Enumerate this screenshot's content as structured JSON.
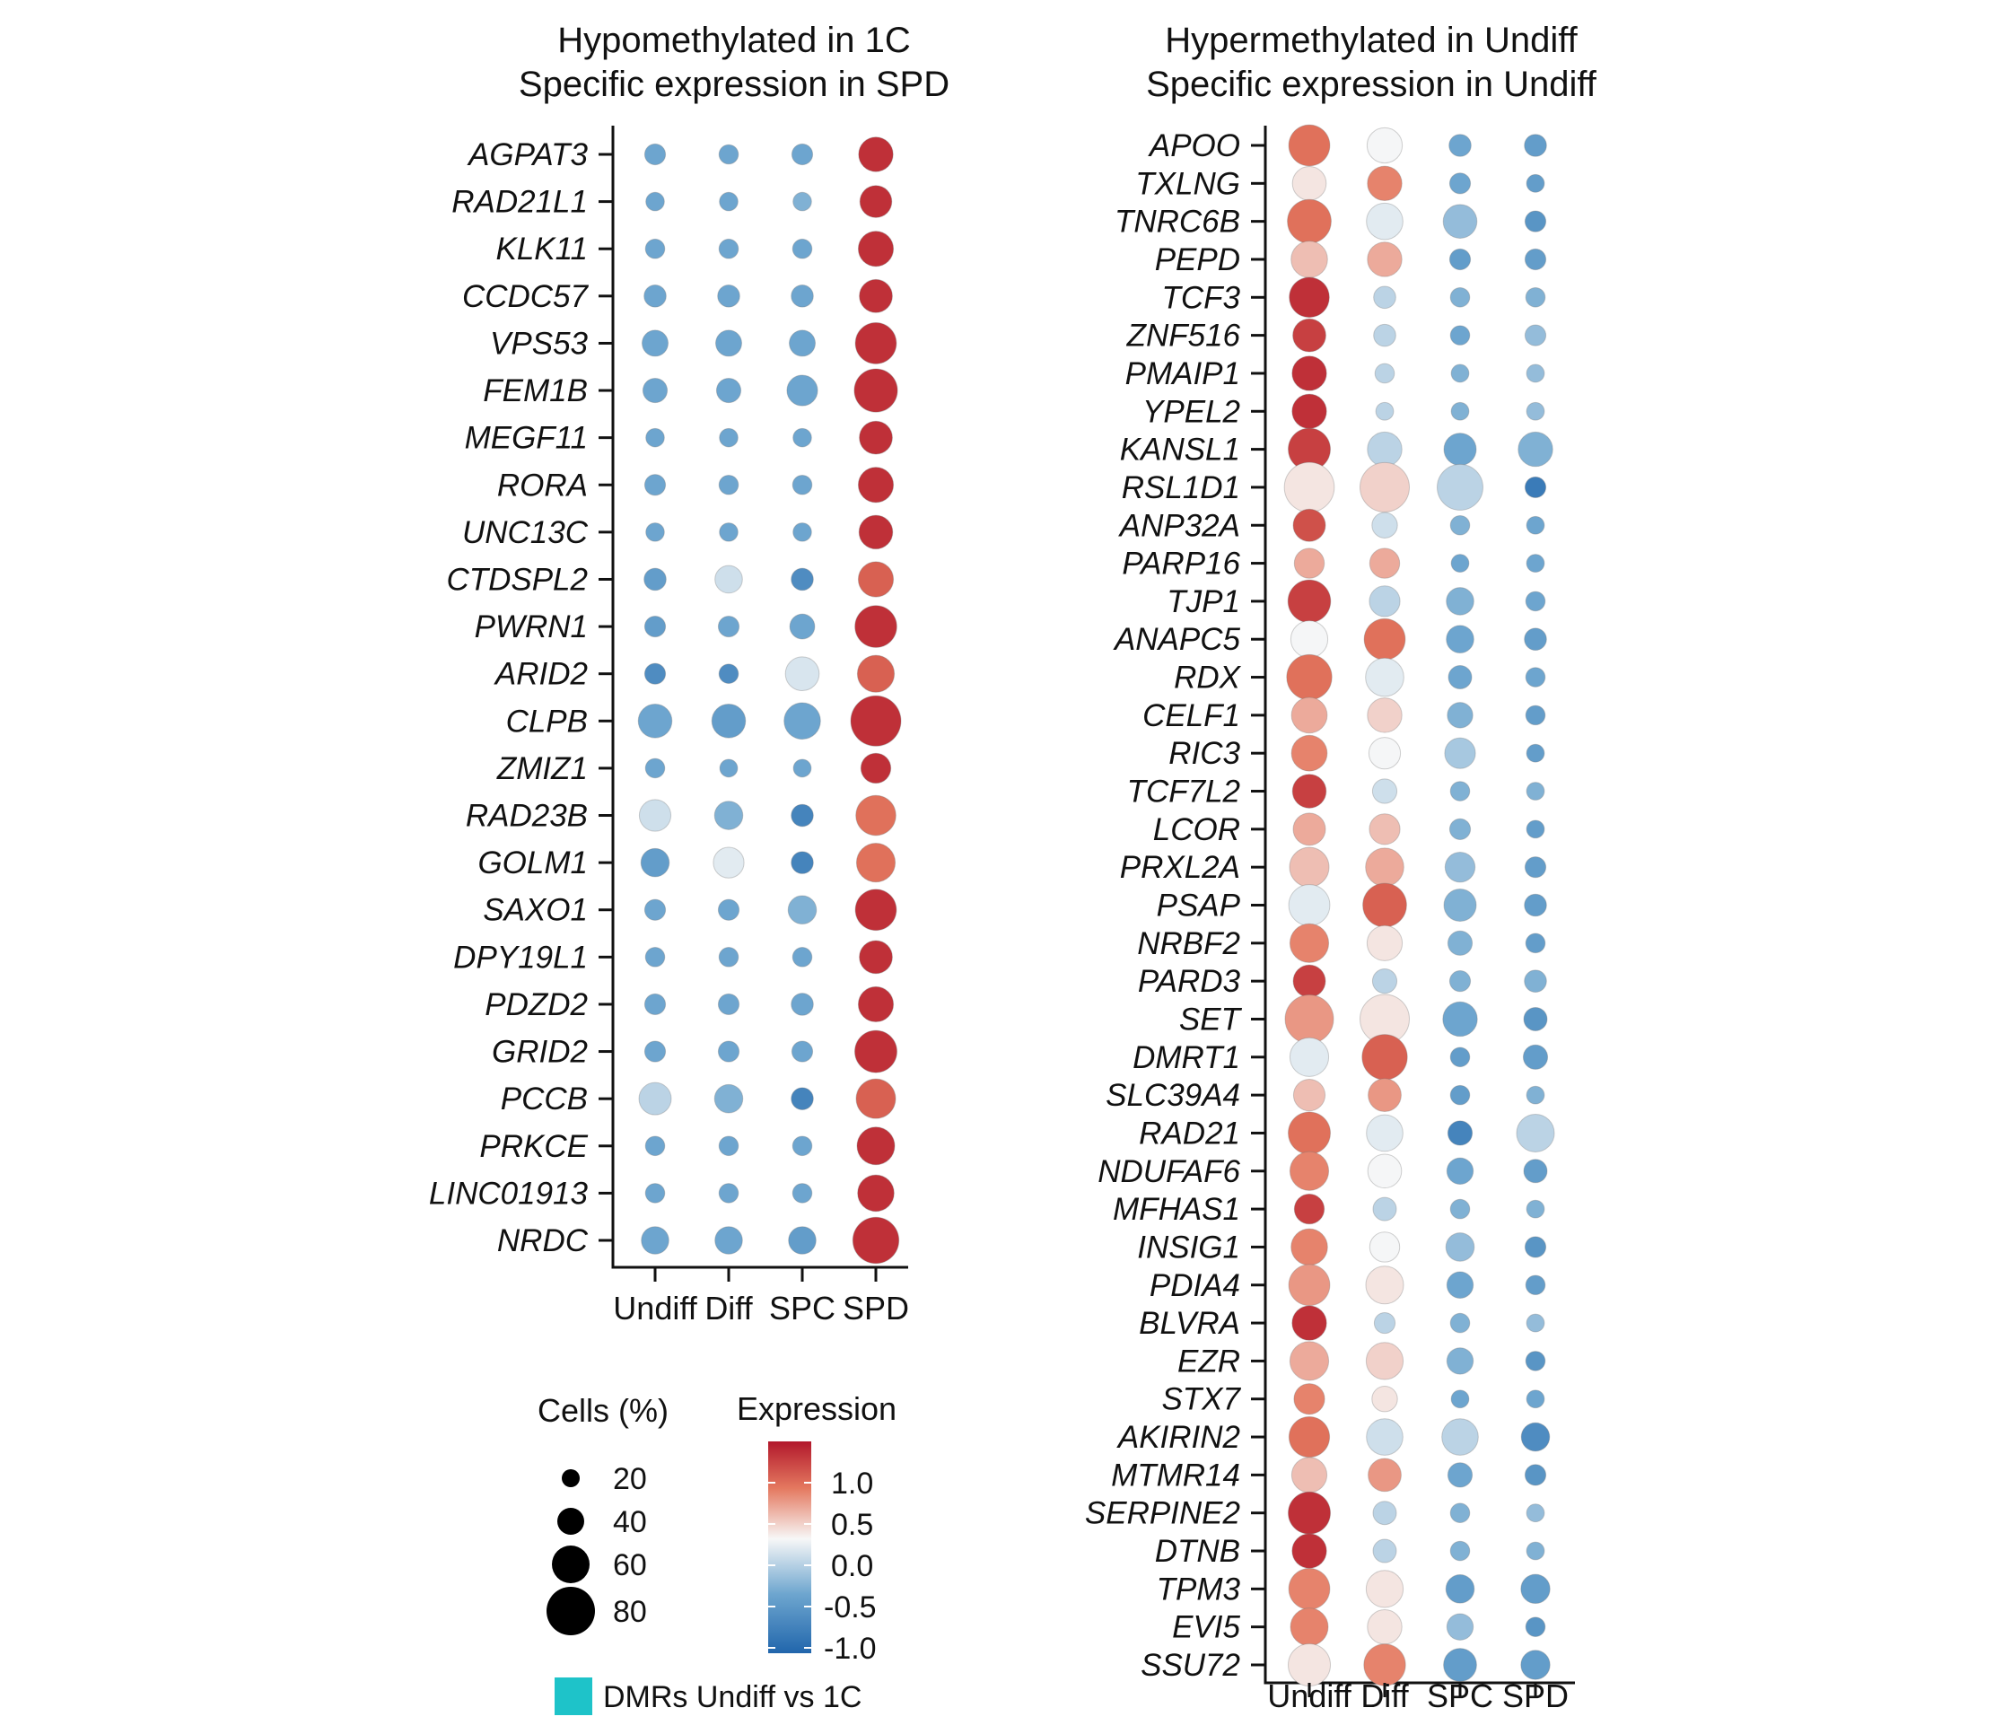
{
  "chart_data": [
    {
      "type": "dotplot",
      "title": [
        "Hypomethylated in 1C",
        "Specific expression in SPD"
      ],
      "categories": [
        "Undiff",
        "Diff",
        "SPC",
        "SPD"
      ],
      "genes": [
        "AGPAT3",
        "RAD21L1",
        "KLK11",
        "CCDC57",
        "VPS53",
        "FEM1B",
        "MEGF11",
        "RORA",
        "UNC13C",
        "CTDSPL2",
        "PWRN1",
        "ARID2",
        "CLPB",
        "ZMIZ1",
        "RAD23B",
        "GOLM1",
        "SAXO1",
        "DPY19L1",
        "PDZD2",
        "GRID2",
        "PCCB",
        "PRKCE",
        "LINC01913",
        "NRDC"
      ],
      "expression": [
        [
          -0.5,
          -0.5,
          -0.5,
          1.3
        ],
        [
          -0.5,
          -0.5,
          -0.4,
          1.3
        ],
        [
          -0.5,
          -0.5,
          -0.5,
          1.3
        ],
        [
          -0.5,
          -0.5,
          -0.5,
          1.3
        ],
        [
          -0.5,
          -0.5,
          -0.5,
          1.3
        ],
        [
          -0.5,
          -0.5,
          -0.5,
          1.3
        ],
        [
          -0.5,
          -0.5,
          -0.5,
          1.3
        ],
        [
          -0.5,
          -0.5,
          -0.5,
          1.3
        ],
        [
          -0.5,
          -0.5,
          -0.5,
          1.3
        ],
        [
          -0.6,
          0.0,
          -0.8,
          1.0
        ],
        [
          -0.6,
          -0.5,
          -0.5,
          1.3
        ],
        [
          -0.8,
          -0.8,
          0.05,
          1.0
        ],
        [
          -0.5,
          -0.6,
          -0.5,
          1.3
        ],
        [
          -0.5,
          -0.5,
          -0.5,
          1.3
        ],
        [
          0.0,
          -0.4,
          -0.9,
          0.9
        ],
        [
          -0.6,
          0.1,
          -0.9,
          0.9
        ],
        [
          -0.5,
          -0.5,
          -0.4,
          1.3
        ],
        [
          -0.5,
          -0.5,
          -0.5,
          1.3
        ],
        [
          -0.5,
          -0.5,
          -0.5,
          1.3
        ],
        [
          -0.5,
          -0.5,
          -0.5,
          1.3
        ],
        [
          -0.1,
          -0.4,
          -0.9,
          1.0
        ],
        [
          -0.5,
          -0.5,
          -0.5,
          1.3
        ],
        [
          -0.5,
          -0.5,
          -0.5,
          1.3
        ],
        [
          -0.5,
          -0.5,
          -0.6,
          1.3
        ]
      ],
      "cells_pct": [
        [
          10,
          8,
          10,
          40
        ],
        [
          7,
          7,
          7,
          33
        ],
        [
          8,
          8,
          8,
          42
        ],
        [
          12,
          12,
          12,
          36
        ],
        [
          19,
          19,
          19,
          62
        ],
        [
          16,
          16,
          30,
          70
        ],
        [
          7,
          7,
          7,
          36
        ],
        [
          10,
          8,
          8,
          42
        ],
        [
          7,
          7,
          7,
          38
        ],
        [
          12,
          22,
          12,
          42
        ],
        [
          10,
          10,
          17,
          65
        ],
        [
          10,
          8,
          38,
          48
        ],
        [
          38,
          38,
          46,
          100
        ],
        [
          8,
          6,
          6,
          28
        ],
        [
          32,
          24,
          12,
          58
        ],
        [
          24,
          30,
          12,
          54
        ],
        [
          10,
          10,
          24,
          62
        ],
        [
          8,
          8,
          8,
          36
        ],
        [
          10,
          10,
          12,
          42
        ],
        [
          10,
          10,
          10,
          66
        ],
        [
          34,
          24,
          12,
          56
        ],
        [
          8,
          8,
          8,
          50
        ],
        [
          8,
          8,
          8,
          46
        ],
        [
          22,
          22,
          22,
          82
        ]
      ],
      "xlabel": "",
      "ylabel": ""
    },
    {
      "type": "dotplot",
      "title": [
        "Hypermethylated in Undiff",
        "Specific expression in Undiff"
      ],
      "categories": [
        "Undiff",
        "Diff",
        "SPC",
        "SPD"
      ],
      "genes": [
        "APOO",
        "TXLNG",
        "TNRC6B",
        "PEPD",
        "TCF3",
        "ZNF516",
        "PMAIP1",
        "YPEL2",
        "KANSL1",
        "RSL1D1",
        "ANP32A",
        "PARP16",
        "TJP1",
        "ANAPC5",
        "RDX",
        "CELF1",
        "RIC3",
        "TCF7L2",
        "LCOR",
        "PRXL2A",
        "PSAP",
        "NRBF2",
        "PARD3",
        "SET",
        "DMRT1",
        "SLC39A4",
        "RAD21",
        "NDUFAF6",
        "MFHAS1",
        "INSIG1",
        "PDIA4",
        "BLVRA",
        "EZR",
        "STX7",
        "AKIRIN2",
        "MTMR14",
        "SERPINE2",
        "DTNB",
        "TPM3",
        "EVI5",
        "SSU72"
      ],
      "expression": [
        [
          0.9,
          0.2,
          -0.5,
          -0.6
        ],
        [
          0.3,
          0.8,
          -0.5,
          -0.6
        ],
        [
          0.9,
          0.1,
          -0.3,
          -0.7
        ],
        [
          0.5,
          0.6,
          -0.6,
          -0.6
        ],
        [
          1.3,
          -0.1,
          -0.4,
          -0.4
        ],
        [
          1.2,
          -0.1,
          -0.5,
          -0.3
        ],
        [
          1.3,
          -0.1,
          -0.4,
          -0.3
        ],
        [
          1.3,
          -0.1,
          -0.4,
          -0.3
        ],
        [
          1.2,
          -0.1,
          -0.5,
          -0.4
        ],
        [
          0.3,
          0.4,
          -0.1,
          -1.0
        ],
        [
          1.1,
          0.0,
          -0.4,
          -0.5
        ],
        [
          0.6,
          0.6,
          -0.5,
          -0.5
        ],
        [
          1.2,
          -0.1,
          -0.4,
          -0.5
        ],
        [
          0.2,
          0.9,
          -0.5,
          -0.6
        ],
        [
          0.9,
          0.1,
          -0.5,
          -0.5
        ],
        [
          0.6,
          0.4,
          -0.4,
          -0.6
        ],
        [
          0.8,
          0.2,
          -0.2,
          -0.6
        ],
        [
          1.2,
          0.0,
          -0.4,
          -0.4
        ],
        [
          0.6,
          0.5,
          -0.4,
          -0.6
        ],
        [
          0.5,
          0.6,
          -0.3,
          -0.6
        ],
        [
          0.1,
          1.0,
          -0.4,
          -0.6
        ],
        [
          0.8,
          0.3,
          -0.4,
          -0.6
        ],
        [
          1.2,
          -0.1,
          -0.4,
          -0.4
        ],
        [
          0.7,
          0.3,
          -0.5,
          -0.7
        ],
        [
          0.1,
          1.0,
          -0.6,
          -0.6
        ],
        [
          0.5,
          0.7,
          -0.6,
          -0.4
        ],
        [
          0.9,
          0.1,
          -0.9,
          -0.1
        ],
        [
          0.8,
          0.2,
          -0.5,
          -0.6
        ],
        [
          1.2,
          -0.1,
          -0.4,
          -0.4
        ],
        [
          0.8,
          0.2,
          -0.3,
          -0.7
        ],
        [
          0.7,
          0.3,
          -0.5,
          -0.6
        ],
        [
          1.3,
          -0.1,
          -0.4,
          -0.3
        ],
        [
          0.6,
          0.4,
          -0.4,
          -0.7
        ],
        [
          0.8,
          0.3,
          -0.5,
          -0.5
        ],
        [
          0.9,
          0.0,
          -0.1,
          -0.8
        ],
        [
          0.5,
          0.7,
          -0.5,
          -0.7
        ],
        [
          1.3,
          -0.1,
          -0.4,
          -0.3
        ],
        [
          1.3,
          -0.1,
          -0.4,
          -0.4
        ],
        [
          0.8,
          0.3,
          -0.6,
          -0.6
        ],
        [
          0.8,
          0.3,
          -0.3,
          -0.7
        ],
        [
          0.3,
          0.8,
          -0.6,
          -0.6
        ]
      ],
      "cells_pct": [
        [
          62,
          42,
          12,
          12
        ],
        [
          38,
          40,
          10,
          6
        ],
        [
          72,
          46,
          38,
          10
        ],
        [
          46,
          40,
          10,
          10
        ],
        [
          58,
          12,
          8,
          8
        ],
        [
          36,
          12,
          8,
          10
        ],
        [
          40,
          8,
          6,
          6
        ],
        [
          40,
          6,
          6,
          6
        ],
        [
          66,
          40,
          34,
          40
        ],
        [
          98,
          96,
          80,
          10
        ],
        [
          34,
          18,
          8,
          6
        ],
        [
          28,
          28,
          6,
          6
        ],
        [
          68,
          30,
          22,
          8
        ],
        [
          48,
          62,
          22,
          12
        ],
        [
          78,
          52,
          14,
          8
        ],
        [
          44,
          40,
          18,
          8
        ],
        [
          44,
          32,
          30,
          6
        ],
        [
          38,
          16,
          8,
          6
        ],
        [
          34,
          30,
          10,
          6
        ],
        [
          56,
          52,
          28,
          10
        ],
        [
          62,
          72,
          34,
          12
        ],
        [
          54,
          42,
          16,
          8
        ],
        [
          34,
          16,
          10,
          12
        ],
        [
          92,
          96,
          40,
          14
        ],
        [
          54,
          78,
          8,
          16
        ],
        [
          32,
          36,
          8,
          6
        ],
        [
          66,
          46,
          16,
          50
        ],
        [
          54,
          38,
          20,
          14
        ],
        [
          28,
          14,
          8,
          6
        ],
        [
          46,
          28,
          24,
          10
        ],
        [
          62,
          50,
          20,
          8
        ],
        [
          40,
          10,
          8,
          6
        ],
        [
          54,
          48,
          20,
          8
        ],
        [
          30,
          18,
          6,
          6
        ],
        [
          60,
          46,
          46,
          24
        ],
        [
          42,
          36,
          16,
          10
        ],
        [
          66,
          14,
          8,
          6
        ],
        [
          40,
          14,
          8,
          6
        ],
        [
          62,
          48,
          24,
          26
        ],
        [
          50,
          40,
          20,
          8
        ],
        [
          66,
          64,
          36,
          26
        ]
      ],
      "xlabel": "",
      "ylabel": ""
    }
  ],
  "legend": {
    "size_title": "Cells (%)",
    "size_values": [
      "20",
      "40",
      "60",
      "80"
    ],
    "color_title": "Expression",
    "color_ticks": [
      "1.0",
      "0.5",
      "0.0",
      "-0.5",
      "-1.0"
    ],
    "color_min": -1.25,
    "color_max": 1.45,
    "dmr_label": "DMRs Undiff vs 1C",
    "dmr_color": "#1ec3c9"
  },
  "colors": {
    "high": "#b2182b",
    "mid_high": "#e4785f",
    "mid": "#f7f7f7",
    "mid_low": "#6ea6cf",
    "low": "#2166ac"
  }
}
